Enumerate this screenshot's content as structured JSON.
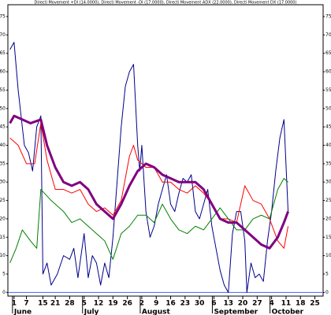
{
  "chart_data": {
    "type": "line",
    "title": "Directi Movement +DI (14.0000), Directi Movement -DI (17.0000), Directi Movement ADX (22.0000), Directi Movement DX (17.0000)",
    "xlim": [
      -3,
      150
    ],
    "ylim": [
      -1,
      79.5
    ],
    "xticks": [
      {
        "value": 0,
        "label": "1"
      },
      {
        "value": 6,
        "label": "7"
      },
      {
        "value": 14,
        "label": "15"
      },
      {
        "value": 20,
        "label": "21"
      },
      {
        "value": 27,
        "label": "28"
      },
      {
        "value": 34,
        "label": "5"
      },
      {
        "value": 41,
        "label": "12"
      },
      {
        "value": 48,
        "label": "19"
      },
      {
        "value": 55,
        "label": "26"
      },
      {
        "value": 62,
        "label": "2"
      },
      {
        "value": 69,
        "label": "9"
      },
      {
        "value": 76,
        "label": "16"
      },
      {
        "value": 83,
        "label": "23"
      },
      {
        "value": 90,
        "label": "30"
      },
      {
        "value": 97,
        "label": "6"
      },
      {
        "value": 104,
        "label": "13"
      },
      {
        "value": 111,
        "label": "20"
      },
      {
        "value": 118,
        "label": "27"
      },
      {
        "value": 125,
        "label": "4"
      },
      {
        "value": 132,
        "label": "11"
      },
      {
        "value": 139,
        "label": "18"
      },
      {
        "value": 146,
        "label": "25"
      }
    ],
    "month_labels": [
      {
        "value": 0,
        "label": "June"
      },
      {
        "value": 34,
        "label": "July"
      },
      {
        "value": 62,
        "label": "August"
      },
      {
        "value": 97,
        "label": "September"
      },
      {
        "value": 125,
        "label": "October"
      }
    ],
    "yticks": [
      0,
      5,
      10,
      15,
      20,
      25,
      30,
      35,
      40,
      45,
      50,
      55,
      60,
      65,
      70,
      75
    ],
    "reference_line": 0,
    "reference_color": "#4060ff",
    "series": [
      {
        "color": "#00008b",
        "width": 1,
        "x": [
          -2,
          0,
          2,
          5,
          7,
          9,
          11,
          13,
          14,
          16,
          18,
          21,
          24,
          27,
          29,
          31,
          34,
          36,
          38,
          40,
          42,
          44,
          46,
          48,
          50,
          52,
          54,
          56,
          58,
          60,
          61,
          62,
          64,
          66,
          68,
          70,
          72,
          74,
          76,
          78,
          80,
          82,
          84,
          86,
          88,
          90,
          92,
          94,
          96,
          98,
          100,
          102,
          104,
          106,
          108,
          110,
          112,
          113,
          115,
          117,
          119,
          121,
          123,
          125,
          127,
          129,
          131,
          133
        ],
        "values": [
          66,
          68,
          55,
          40,
          38,
          33,
          45,
          48,
          5,
          8,
          2,
          5,
          10,
          9,
          12,
          4,
          16,
          4,
          10,
          8,
          2,
          8,
          4,
          15,
          30,
          45,
          56,
          60,
          62,
          40,
          33,
          40,
          22,
          15,
          18,
          24,
          28,
          32,
          24,
          22,
          27,
          31,
          30,
          32,
          22,
          20,
          24,
          28,
          18,
          12,
          6,
          2,
          0,
          16,
          22,
          22,
          14,
          0,
          8,
          4,
          5,
          3,
          14,
          22,
          33,
          42,
          47,
          22
        ]
      },
      {
        "color": "#ff0000",
        "width": 1,
        "x": [
          -2,
          2,
          6,
          10,
          13,
          16,
          20,
          24,
          28,
          32,
          36,
          40,
          44,
          48,
          52,
          56,
          58,
          60,
          64,
          68,
          72,
          76,
          80,
          84,
          88,
          92,
          96,
          100,
          104,
          108,
          112,
          116,
          120,
          124,
          128,
          131,
          133
        ],
        "values": [
          42,
          40,
          35,
          35,
          46,
          36,
          28,
          28,
          27,
          28,
          24,
          22,
          23,
          21,
          25,
          37,
          40,
          36,
          34,
          34,
          30,
          30,
          28,
          27,
          29,
          27,
          24,
          20,
          20,
          19,
          29,
          25,
          24,
          20,
          14,
          12,
          18
        ]
      },
      {
        "color": "#008000",
        "width": 1,
        "x": [
          -2,
          1,
          4,
          8,
          11,
          13,
          18,
          24,
          28,
          32,
          36,
          40,
          44,
          48,
          52,
          56,
          60,
          64,
          68,
          72,
          76,
          80,
          84,
          88,
          92,
          96,
          100,
          104,
          108,
          112,
          116,
          120,
          124,
          128,
          131,
          133
        ],
        "values": [
          8,
          12,
          17,
          14,
          12,
          28,
          25,
          22,
          19,
          20,
          18,
          16,
          14,
          9,
          16,
          18,
          21,
          21,
          19,
          24,
          20,
          17,
          16,
          18,
          17,
          20,
          23,
          20,
          17,
          17,
          20,
          21,
          20,
          28,
          31,
          30
        ]
      },
      {
        "color": "#800080",
        "width": 3,
        "x": [
          -2,
          0,
          4,
          8,
          13,
          16,
          20,
          24,
          28,
          32,
          36,
          40,
          44,
          48,
          52,
          56,
          60,
          64,
          68,
          72,
          76,
          80,
          84,
          88,
          92,
          96,
          100,
          104,
          108,
          112,
          116,
          120,
          124,
          128,
          131,
          133
        ],
        "values": [
          46,
          48,
          47,
          46,
          47,
          40,
          34,
          30,
          29,
          30,
          28,
          24,
          22,
          20,
          24,
          29,
          33,
          35,
          34,
          32,
          31,
          30,
          30,
          30,
          28,
          24,
          20,
          19,
          19,
          17,
          15,
          13,
          12,
          15,
          19,
          22
        ]
      }
    ]
  }
}
